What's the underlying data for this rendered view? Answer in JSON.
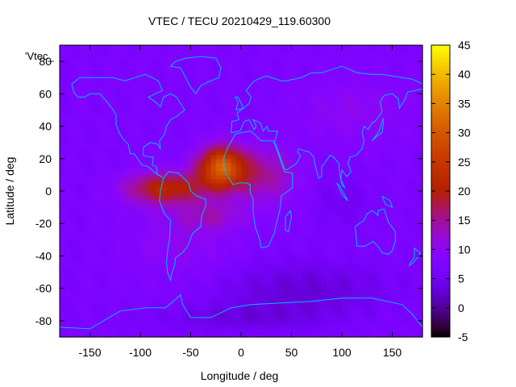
{
  "chart_data": {
    "type": "heatmap",
    "title": "VTEC / TECU 20210429_119.60300",
    "xlabel": "Longitude / deg",
    "ylabel": "Latitude / deg",
    "key_label": "'Vtec_",
    "xlim": [
      -180,
      180
    ],
    "ylim": [
      -90,
      90
    ],
    "xticks": [
      -150,
      -100,
      -50,
      0,
      50,
      100,
      150
    ],
    "yticks": [
      -80,
      -60,
      -40,
      -20,
      0,
      20,
      40,
      60,
      80
    ],
    "colorbar": {
      "range": [
        -5,
        45
      ],
      "ticks": [
        -5,
        0,
        5,
        10,
        15,
        20,
        25,
        30,
        35,
        40,
        45
      ],
      "palette": "gnuplot black-blue-purple-red-orange-yellow"
    },
    "grid_resolution_deg": {
      "lon": 5,
      "lat": 2.5
    },
    "background_vtec": 7,
    "anomalies": [
      {
        "lon": -20,
        "lat": 15,
        "sigma_lon": 16,
        "sigma_lat": 9,
        "amplitude": 22
      },
      {
        "lon": -75,
        "lat": 2,
        "sigma_lon": 28,
        "sigma_lat": 7,
        "amplitude": 14
      },
      {
        "lon": 20,
        "lat": 10,
        "sigma_lon": 25,
        "sigma_lat": 12,
        "amplitude": 8
      },
      {
        "lon": -30,
        "lat": -15,
        "sigma_lon": 22,
        "sigma_lat": 6,
        "amplitude": 5
      },
      {
        "lon": -60,
        "lat": -30,
        "sigma_lon": 40,
        "sigma_lat": 18,
        "amplitude": 3
      },
      {
        "lon": 60,
        "lat": -60,
        "sigma_lon": 60,
        "sigma_lat": 12,
        "amplitude": -4
      },
      {
        "lon": 0,
        "lat": -78,
        "sigma_lon": 60,
        "sigma_lat": 6,
        "amplitude": -3
      },
      {
        "lon": 100,
        "lat": -5,
        "sigma_lon": 20,
        "sigma_lat": 12,
        "amplitude": -2
      },
      {
        "lon": 110,
        "lat": 50,
        "sigma_lon": 40,
        "sigma_lat": 15,
        "amplitude": 3
      }
    ],
    "coastlines_note": "continent outlines drawn in cyan"
  }
}
